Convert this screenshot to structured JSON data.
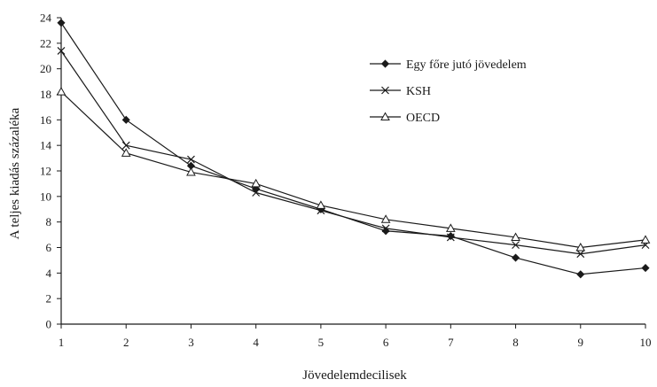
{
  "chart_data": {
    "type": "line",
    "xlabel": "Jövedelemdecilisek",
    "ylabel": "A teljes kiadás százaléka",
    "x": [
      1,
      2,
      3,
      4,
      5,
      6,
      7,
      8,
      9,
      10
    ],
    "xlim": [
      1,
      10
    ],
    "ylim": [
      0,
      24
    ],
    "yticks": [
      0,
      2,
      4,
      6,
      8,
      10,
      12,
      14,
      16,
      18,
      20,
      22,
      24
    ],
    "grid": false,
    "legend_position": "top-right",
    "series": [
      {
        "name": "Egy főre jutó jövedelem",
        "marker": "diamond",
        "values": [
          23.6,
          16.0,
          12.4,
          10.6,
          9.0,
          7.3,
          6.9,
          5.2,
          3.9,
          4.4
        ]
      },
      {
        "name": "KSH",
        "marker": "x",
        "values": [
          21.4,
          14.0,
          12.9,
          10.3,
          8.9,
          7.5,
          6.8,
          6.2,
          5.5,
          6.2
        ]
      },
      {
        "name": "OECD",
        "marker": "triangle",
        "values": [
          18.2,
          13.4,
          11.9,
          11.0,
          9.3,
          8.2,
          7.5,
          6.8,
          6.0,
          6.6
        ]
      }
    ]
  }
}
